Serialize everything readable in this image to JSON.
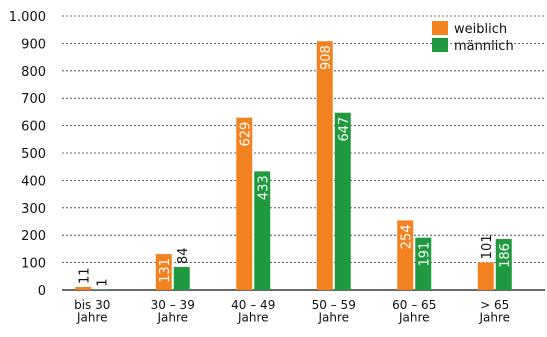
{
  "chart_data": {
    "type": "bar",
    "categories": [
      "bis 30\nJahre",
      "30 – 39\nJahre",
      "40 – 49\nJahre",
      "50 – 59\nJahre",
      "60 – 65\nJahre",
      "> 65\nJahre"
    ],
    "series": [
      {
        "name": "weiblich",
        "color": "#f28220",
        "values": [
          11,
          131,
          629,
          908,
          254,
          101
        ]
      },
      {
        "name": "männlich",
        "color": "#1f9a3e",
        "values": [
          1,
          84,
          433,
          647,
          191,
          186
        ]
      }
    ],
    "ylim": [
      0,
      1000
    ],
    "yticks": [
      0,
      100,
      200,
      300,
      400,
      500,
      600,
      700,
      800,
      900,
      {
        "value": 1000,
        "label": "1.000"
      }
    ],
    "grid": true,
    "legend": "top-right"
  }
}
